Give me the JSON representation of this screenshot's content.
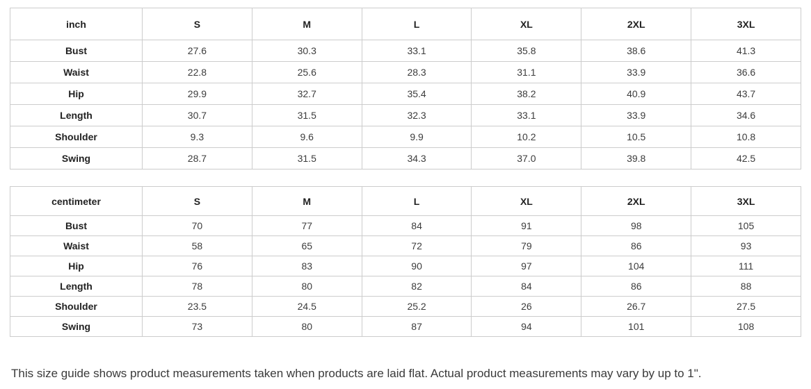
{
  "colors": {
    "background": "#ffffff",
    "table_border": "#cccccc",
    "header_text": "#222222",
    "cell_text": "#3c3c3c",
    "note_text": "#3a3a3a"
  },
  "tables": [
    {
      "unit_header": "inch",
      "size_headers": [
        "S",
        "M",
        "L",
        "XL",
        "2XL",
        "3XL"
      ],
      "rows": [
        {
          "label": "Bust",
          "values": [
            "27.6",
            "30.3",
            "33.1",
            "35.8",
            "38.6",
            "41.3"
          ]
        },
        {
          "label": "Waist",
          "values": [
            "22.8",
            "25.6",
            "28.3",
            "31.1",
            "33.9",
            "36.6"
          ]
        },
        {
          "label": "Hip",
          "values": [
            "29.9",
            "32.7",
            "35.4",
            "38.2",
            "40.9",
            "43.7"
          ]
        },
        {
          "label": "Length",
          "values": [
            "30.7",
            "31.5",
            "32.3",
            "33.1",
            "33.9",
            "34.6"
          ]
        },
        {
          "label": "Shoulder",
          "values": [
            "9.3",
            "9.6",
            "9.9",
            "10.2",
            "10.5",
            "10.8"
          ]
        },
        {
          "label": "Swing",
          "values": [
            "28.7",
            "31.5",
            "34.3",
            "37.0",
            "39.8",
            "42.5"
          ]
        }
      ]
    },
    {
      "unit_header": "centimeter",
      "size_headers": [
        "S",
        "M",
        "L",
        "XL",
        "2XL",
        "3XL"
      ],
      "rows": [
        {
          "label": "Bust",
          "values": [
            "70",
            "77",
            "84",
            "91",
            "98",
            "105"
          ]
        },
        {
          "label": "Waist",
          "values": [
            "58",
            "65",
            "72",
            "79",
            "86",
            "93"
          ]
        },
        {
          "label": "Hip",
          "values": [
            "76",
            "83",
            "90",
            "97",
            "104",
            "111"
          ]
        },
        {
          "label": "Length",
          "values": [
            "78",
            "80",
            "82",
            "84",
            "86",
            "88"
          ]
        },
        {
          "label": "Shoulder",
          "values": [
            "23.5",
            "24.5",
            "25.2",
            "26",
            "26.7",
            "27.5"
          ]
        },
        {
          "label": "Swing",
          "values": [
            "73",
            "80",
            "87",
            "94",
            "101",
            "108"
          ]
        }
      ]
    }
  ],
  "footer": {
    "note": "This size guide shows product measurements taken when products are laid flat. Actual product measurements may vary by up to 1\"."
  }
}
